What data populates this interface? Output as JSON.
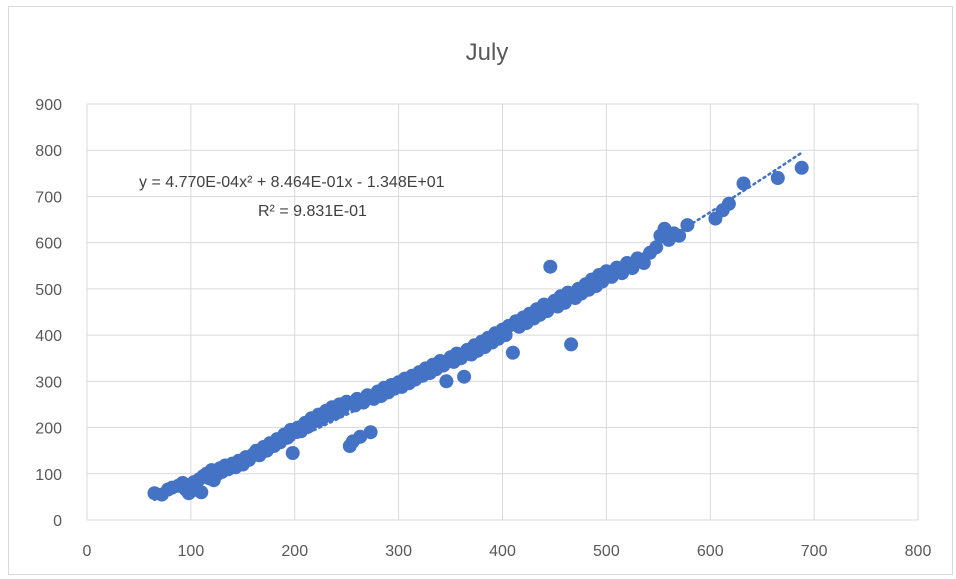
{
  "colors": {
    "marker": "#4472c4",
    "trendline": "#4472c4",
    "grid": "#d9d9d9",
    "text": "#595959"
  },
  "chart_data": {
    "type": "scatter",
    "title": "July",
    "xlabel": "",
    "ylabel": "",
    "xlim": [
      0,
      800
    ],
    "ylim": [
      0,
      900
    ],
    "x_ticks": [
      "0",
      "100",
      "200",
      "300",
      "400",
      "500",
      "600",
      "700",
      "800"
    ],
    "y_ticks": [
      "0",
      "100",
      "200",
      "300",
      "400",
      "500",
      "600",
      "700",
      "800",
      "900"
    ],
    "grid": true,
    "legend": "none",
    "trendline": {
      "type": "polynomial",
      "order": 2,
      "coefficients": {
        "a": 0.000477,
        "b": 0.8464,
        "c": -13.48
      },
      "equation_label": "y = 4.770E-04x² + 8.464E-01x - 1.348E+01",
      "r2_label": "R² = 9.831E-01",
      "style": "dotted"
    },
    "points": [
      [
        65,
        58
      ],
      [
        72,
        55
      ],
      [
        78,
        66
      ],
      [
        82,
        70
      ],
      [
        88,
        74
      ],
      [
        92,
        80
      ],
      [
        95,
        66
      ],
      [
        98,
        58
      ],
      [
        100,
        62
      ],
      [
        103,
        82
      ],
      [
        105,
        70
      ],
      [
        108,
        88
      ],
      [
        110,
        60
      ],
      [
        112,
        95
      ],
      [
        115,
        100
      ],
      [
        118,
        90
      ],
      [
        120,
        108
      ],
      [
        122,
        86
      ],
      [
        125,
        98
      ],
      [
        128,
        112
      ],
      [
        130,
        104
      ],
      [
        133,
        118
      ],
      [
        136,
        110
      ],
      [
        140,
        122
      ],
      [
        143,
        114
      ],
      [
        146,
        128
      ],
      [
        150,
        120
      ],
      [
        153,
        136
      ],
      [
        156,
        130
      ],
      [
        160,
        142
      ],
      [
        163,
        150
      ],
      [
        166,
        140
      ],
      [
        170,
        158
      ],
      [
        173,
        150
      ],
      [
        176,
        166
      ],
      [
        180,
        160
      ],
      [
        183,
        175
      ],
      [
        186,
        168
      ],
      [
        190,
        185
      ],
      [
        193,
        178
      ],
      [
        196,
        195
      ],
      [
        198,
        145
      ],
      [
        200,
        190
      ],
      [
        203,
        200
      ],
      [
        206,
        192
      ],
      [
        210,
        210
      ],
      [
        213,
        202
      ],
      [
        216,
        220
      ],
      [
        220,
        214
      ],
      [
        223,
        228
      ],
      [
        226,
        218
      ],
      [
        230,
        236
      ],
      [
        233,
        226
      ],
      [
        236,
        244
      ],
      [
        240,
        232
      ],
      [
        243,
        250
      ],
      [
        246,
        240
      ],
      [
        250,
        256
      ],
      [
        253,
        160
      ],
      [
        256,
        170
      ],
      [
        258,
        248
      ],
      [
        260,
        262
      ],
      [
        263,
        180
      ],
      [
        266,
        254
      ],
      [
        270,
        270
      ],
      [
        273,
        190
      ],
      [
        276,
        262
      ],
      [
        280,
        278
      ],
      [
        283,
        268
      ],
      [
        286,
        286
      ],
      [
        290,
        276
      ],
      [
        293,
        292
      ],
      [
        296,
        284
      ],
      [
        300,
        298
      ],
      [
        303,
        288
      ],
      [
        306,
        306
      ],
      [
        310,
        296
      ],
      [
        313,
        312
      ],
      [
        316,
        304
      ],
      [
        320,
        320
      ],
      [
        323,
        312
      ],
      [
        326,
        328
      ],
      [
        330,
        318
      ],
      [
        333,
        336
      ],
      [
        336,
        326
      ],
      [
        340,
        344
      ],
      [
        343,
        334
      ],
      [
        346,
        300
      ],
      [
        350,
        352
      ],
      [
        353,
        342
      ],
      [
        356,
        360
      ],
      [
        360,
        350
      ],
      [
        363,
        310
      ],
      [
        366,
        368
      ],
      [
        370,
        358
      ],
      [
        373,
        378
      ],
      [
        376,
        366
      ],
      [
        380,
        386
      ],
      [
        383,
        374
      ],
      [
        386,
        394
      ],
      [
        390,
        384
      ],
      [
        393,
        404
      ],
      [
        396,
        392
      ],
      [
        400,
        412
      ],
      [
        403,
        400
      ],
      [
        406,
        420
      ],
      [
        410,
        362
      ],
      [
        413,
        430
      ],
      [
        416,
        418
      ],
      [
        420,
        438
      ],
      [
        423,
        426
      ],
      [
        426,
        446
      ],
      [
        430,
        436
      ],
      [
        433,
        456
      ],
      [
        436,
        444
      ],
      [
        440,
        466
      ],
      [
        443,
        452
      ],
      [
        446,
        548
      ],
      [
        450,
        474
      ],
      [
        453,
        462
      ],
      [
        456,
        484
      ],
      [
        460,
        470
      ],
      [
        463,
        492
      ],
      [
        466,
        380
      ],
      [
        470,
        480
      ],
      [
        473,
        500
      ],
      [
        476,
        490
      ],
      [
        480,
        510
      ],
      [
        483,
        498
      ],
      [
        486,
        520
      ],
      [
        490,
        506
      ],
      [
        493,
        530
      ],
      [
        496,
        516
      ],
      [
        500,
        538
      ],
      [
        505,
        526
      ],
      [
        510,
        546
      ],
      [
        515,
        534
      ],
      [
        520,
        556
      ],
      [
        525,
        545
      ],
      [
        530,
        566
      ],
      [
        536,
        556
      ],
      [
        542,
        578
      ],
      [
        548,
        590
      ],
      [
        552,
        615
      ],
      [
        556,
        630
      ],
      [
        560,
        606
      ],
      [
        565,
        620
      ],
      [
        570,
        615
      ],
      [
        578,
        638
      ],
      [
        605,
        652
      ],
      [
        612,
        670
      ],
      [
        618,
        684
      ],
      [
        632,
        728
      ],
      [
        665,
        740
      ],
      [
        688,
        762
      ]
    ]
  }
}
